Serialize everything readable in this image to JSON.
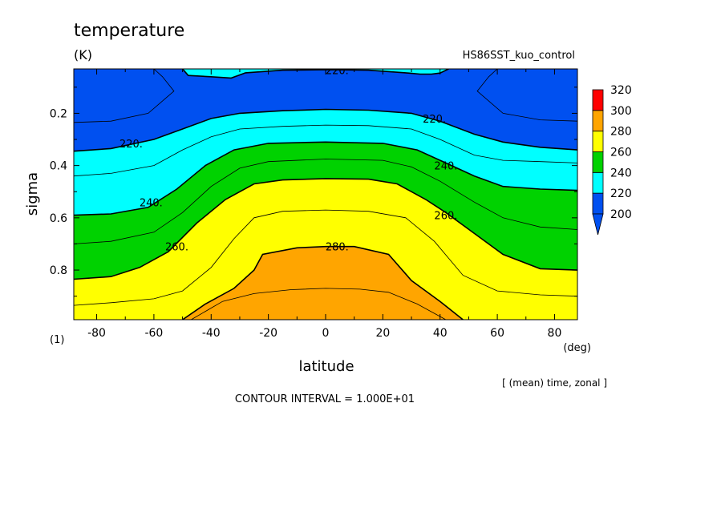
{
  "chart_data": {
    "type": "contour",
    "title": "temperature",
    "units": "(K)",
    "experiment": "HS86SST_kuo_control",
    "xlabel": "latitude",
    "x_units": "(deg)",
    "ylabel": "sigma",
    "y_units": "(1)",
    "averaging_note": "[ (mean) time, zonal ]",
    "contour_interval_text": "CONTOUR INTERVAL = 1.000E+01",
    "xlim": [
      -88,
      88
    ],
    "ylim": [
      0.03,
      0.99
    ],
    "y_inverted": true,
    "x_ticks": [
      -80,
      -60,
      -40,
      -20,
      0,
      20,
      40,
      60,
      80
    ],
    "x_tick_labels": [
      "-80",
      "-60",
      "-40",
      "-20",
      "0",
      "20",
      "40",
      "60",
      "80"
    ],
    "y_ticks": [
      0.2,
      0.4,
      0.6,
      0.8
    ],
    "y_tick_labels": [
      "0.2",
      "0.4",
      "0.6",
      "0.8"
    ],
    "colorbar": {
      "levels": [
        200,
        220,
        240,
        260,
        280,
        300,
        320
      ],
      "labels": [
        "200",
        "220",
        "240",
        "260",
        "280",
        "300",
        "320"
      ],
      "colors": [
        "#0050f0",
        "#00ffff",
        "#00d200",
        "#ffff00",
        "#ffa500",
        "#ff0000"
      ],
      "under_color": "#0050f0",
      "extend": "min"
    },
    "band_colors": {
      "below_220": "#0050f0",
      "220_240": "#00ffff",
      "240_260": "#00d200",
      "260_280": "#ffff00",
      "280_300": "#ffa500"
    },
    "contours": [
      {
        "level": 290,
        "labeled": false,
        "points": [
          [
            -47,
            0.99
          ],
          [
            -36,
            0.92
          ],
          [
            -25,
            0.89
          ],
          [
            -12,
            0.875
          ],
          [
            0,
            0.87
          ],
          [
            12,
            0.873
          ],
          [
            22,
            0.885
          ],
          [
            32,
            0.93
          ],
          [
            42,
            0.99
          ]
        ]
      },
      {
        "level": 280,
        "labeled": true,
        "label": "280.",
        "points": [
          [
            -50,
            0.99
          ],
          [
            -42,
            0.93
          ],
          [
            -32,
            0.87
          ],
          [
            -25,
            0.8
          ],
          [
            -22,
            0.74
          ],
          [
            -10,
            0.715
          ],
          [
            0,
            0.71
          ],
          [
            10,
            0.71
          ],
          [
            22,
            0.74
          ],
          [
            30,
            0.84
          ],
          [
            40,
            0.92
          ],
          [
            48,
            0.99
          ]
        ]
      },
      {
        "level": 270,
        "labeled": false,
        "points": [
          [
            -88,
            0.935
          ],
          [
            -75,
            0.925
          ],
          [
            -60,
            0.91
          ],
          [
            -50,
            0.88
          ],
          [
            -40,
            0.79
          ],
          [
            -32,
            0.68
          ],
          [
            -25,
            0.6
          ],
          [
            -15,
            0.575
          ],
          [
            0,
            0.57
          ],
          [
            15,
            0.575
          ],
          [
            28,
            0.6
          ],
          [
            38,
            0.69
          ],
          [
            48,
            0.82
          ],
          [
            60,
            0.88
          ],
          [
            75,
            0.895
          ],
          [
            88,
            0.9
          ]
        ]
      },
      {
        "level": 260,
        "labeled": true,
        "label": "260.",
        "points": [
          [
            -88,
            0.835
          ],
          [
            -75,
            0.825
          ],
          [
            -65,
            0.79
          ],
          [
            -55,
            0.73
          ],
          [
            -45,
            0.62
          ],
          [
            -35,
            0.53
          ],
          [
            -25,
            0.47
          ],
          [
            -15,
            0.455
          ],
          [
            0,
            0.45
          ],
          [
            15,
            0.452
          ],
          [
            25,
            0.47
          ],
          [
            35,
            0.53
          ],
          [
            42,
            0.58
          ],
          [
            52,
            0.66
          ],
          [
            62,
            0.74
          ],
          [
            75,
            0.795
          ],
          [
            88,
            0.8
          ]
        ]
      },
      {
        "level": 250,
        "labeled": false,
        "points": [
          [
            -88,
            0.7
          ],
          [
            -75,
            0.69
          ],
          [
            -60,
            0.655
          ],
          [
            -50,
            0.58
          ],
          [
            -40,
            0.48
          ],
          [
            -30,
            0.41
          ],
          [
            -20,
            0.385
          ],
          [
            0,
            0.375
          ],
          [
            20,
            0.38
          ],
          [
            30,
            0.405
          ],
          [
            40,
            0.46
          ],
          [
            52,
            0.54
          ],
          [
            62,
            0.6
          ],
          [
            75,
            0.635
          ],
          [
            88,
            0.645
          ]
        ]
      },
      {
        "level": 240,
        "labeled": true,
        "label": "240.",
        "points": [
          [
            -88,
            0.59
          ],
          [
            -75,
            0.585
          ],
          [
            -62,
            0.56
          ],
          [
            -52,
            0.49
          ],
          [
            -42,
            0.4
          ],
          [
            -32,
            0.34
          ],
          [
            -20,
            0.315
          ],
          [
            0,
            0.31
          ],
          [
            20,
            0.315
          ],
          [
            32,
            0.34
          ],
          [
            42,
            0.39
          ],
          [
            52,
            0.44
          ],
          [
            62,
            0.48
          ],
          [
            75,
            0.49
          ],
          [
            88,
            0.495
          ]
        ]
      },
      {
        "level": 230,
        "labeled": false,
        "points": [
          [
            -88,
            0.44
          ],
          [
            -75,
            0.43
          ],
          [
            -60,
            0.4
          ],
          [
            -50,
            0.34
          ],
          [
            -40,
            0.29
          ],
          [
            -30,
            0.26
          ],
          [
            -15,
            0.25
          ],
          [
            0,
            0.245
          ],
          [
            15,
            0.247
          ],
          [
            30,
            0.26
          ],
          [
            40,
            0.3
          ],
          [
            52,
            0.36
          ],
          [
            62,
            0.38
          ],
          [
            75,
            0.385
          ],
          [
            88,
            0.39
          ]
        ]
      },
      {
        "level": 220,
        "labeled": true,
        "label": "220.",
        "points": [
          [
            -88,
            0.345
          ],
          [
            -75,
            0.335
          ],
          [
            -60,
            0.3
          ],
          [
            -50,
            0.26
          ],
          [
            -40,
            0.22
          ],
          [
            -30,
            0.2
          ],
          [
            -15,
            0.19
          ],
          [
            0,
            0.185
          ],
          [
            15,
            0.188
          ],
          [
            30,
            0.2
          ],
          [
            40,
            0.23
          ],
          [
            52,
            0.28
          ],
          [
            62,
            0.31
          ],
          [
            75,
            0.33
          ],
          [
            88,
            0.34
          ]
        ]
      },
      {
        "level": 220,
        "labeled": true,
        "label": "220.",
        "points": [
          [
            -50,
            0.03
          ],
          [
            -48,
            0.055
          ],
          [
            -40,
            0.06
          ],
          [
            -33,
            0.065
          ],
          [
            -28,
            0.045
          ],
          [
            -15,
            0.035
          ],
          [
            0,
            0.033
          ],
          [
            15,
            0.035
          ],
          [
            28,
            0.045
          ],
          [
            33,
            0.05
          ],
          [
            37,
            0.05
          ],
          [
            40,
            0.046
          ],
          [
            43,
            0.03
          ]
        ]
      },
      {
        "level": 210,
        "labeled": false,
        "points": [
          [
            -88,
            0.235
          ],
          [
            -75,
            0.23
          ],
          [
            -62,
            0.2
          ],
          [
            -53,
            0.115
          ],
          [
            -57,
            0.06
          ],
          [
            -60,
            0.03
          ]
        ]
      },
      {
        "level": 210,
        "labeled": false,
        "points": [
          [
            60,
            0.03
          ],
          [
            57,
            0.06
          ],
          [
            53,
            0.115
          ],
          [
            62,
            0.2
          ],
          [
            75,
            0.225
          ],
          [
            88,
            0.23
          ]
        ]
      }
    ],
    "labels": [
      {
        "text": "220.",
        "x": 4,
        "y": 0.035
      },
      {
        "text": "220.",
        "x": 38,
        "y": 0.22
      },
      {
        "text": "220.",
        "x": -68,
        "y": 0.315
      },
      {
        "text": "240.",
        "x": 42,
        "y": 0.4
      },
      {
        "text": "240.",
        "x": -61,
        "y": 0.54
      },
      {
        "text": "260.",
        "x": 42,
        "y": 0.59
      },
      {
        "text": "260.",
        "x": -52,
        "y": 0.71
      },
      {
        "text": "280.",
        "x": 4,
        "y": 0.71
      }
    ]
  }
}
